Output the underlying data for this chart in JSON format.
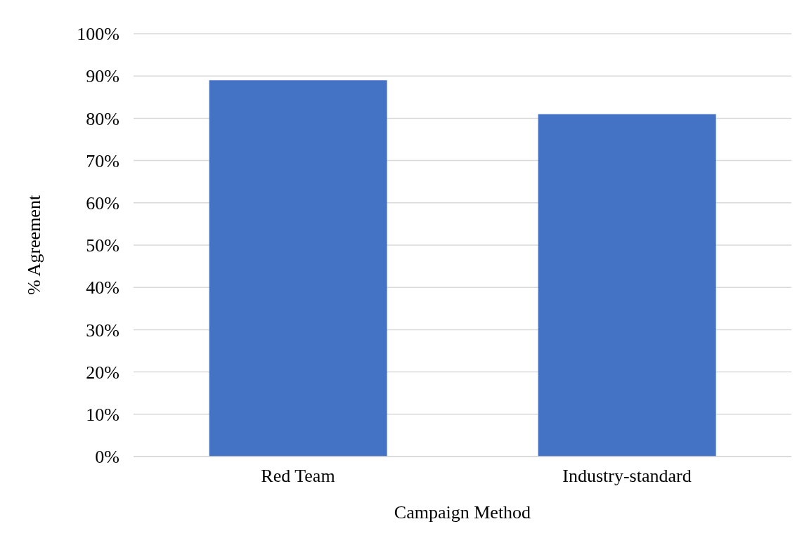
{
  "chart_data": {
    "type": "bar",
    "xlabel": "Campaign Method",
    "ylabel": "% Agreement",
    "categories": [
      "Red Team",
      "Industry-standard"
    ],
    "values": [
      89,
      81
    ],
    "color": "#4472c4",
    "ylim": [
      0,
      100
    ],
    "yticks": [
      {
        "value": 0,
        "label": "0%"
      },
      {
        "value": 10,
        "label": "10%"
      },
      {
        "value": 20,
        "label": "20%"
      },
      {
        "value": 30,
        "label": "30%"
      },
      {
        "value": 40,
        "label": "40%"
      },
      {
        "value": 50,
        "label": "50%"
      },
      {
        "value": 60,
        "label": "60%"
      },
      {
        "value": 70,
        "label": "70%"
      },
      {
        "value": 80,
        "label": "80%"
      },
      {
        "value": 90,
        "label": "90%"
      },
      {
        "value": 100,
        "label": "100%"
      }
    ],
    "grid": "y",
    "legend": false
  }
}
